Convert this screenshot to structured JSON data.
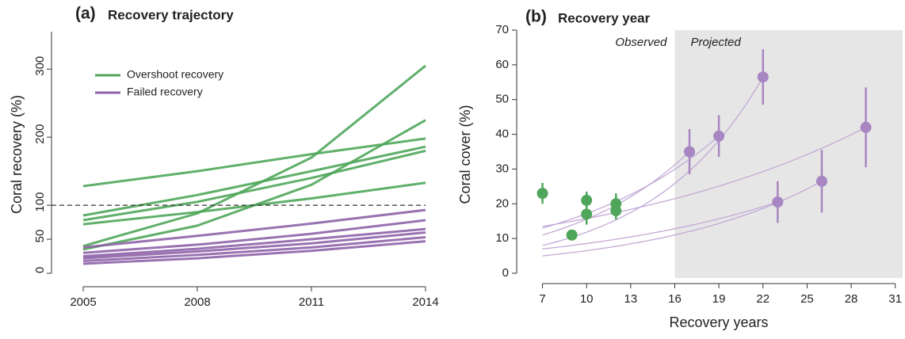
{
  "chart_data": [
    {
      "type": "line",
      "panel_label": "(a)",
      "title": "Recovery trajectory",
      "ylabel": "Coral recovery (%)",
      "x": [
        2005,
        2008,
        2011,
        2014
      ],
      "xlim": [
        2005,
        2014
      ],
      "xticks": [
        2005,
        2008,
        2011,
        2014
      ],
      "ylim": [
        -10,
        355
      ],
      "yticks": [
        0,
        50,
        100,
        200,
        300
      ],
      "reference_line": 100,
      "legend": "upper left",
      "series": [
        {
          "name": "Overshoot recovery",
          "color": "#4fa65a",
          "lines": [
            [
              128,
              150,
              175,
              198
            ],
            [
              40,
              88,
              170,
              305
            ],
            [
              35,
              70,
              130,
              225
            ],
            [
              85,
              115,
              150,
              186
            ],
            [
              72,
              90,
              110,
              133
            ],
            [
              78,
              105,
              140,
              180
            ]
          ]
        },
        {
          "name": "Failed recovery",
          "color": "#8e63a8",
          "lines": [
            [
              38,
              55,
              73,
              93
            ],
            [
              30,
              42,
              58,
              78
            ],
            [
              25,
              36,
              50,
              65
            ],
            [
              22,
              32,
              44,
              60
            ],
            [
              18,
              27,
              38,
              53
            ],
            [
              14,
              22,
              33,
              47
            ]
          ]
        }
      ]
    },
    {
      "type": "scatter",
      "panel_label": "(b)",
      "title": "Recovery year",
      "xlabel": "Recovery years",
      "ylabel": "Coral cover (%)",
      "xlim": [
        5.3,
        31.5
      ],
      "xticks": [
        7,
        10,
        13,
        16,
        19,
        22,
        25,
        28,
        31
      ],
      "ylim": [
        0,
        70
      ],
      "yticks": [
        0,
        10,
        20,
        30,
        40,
        50,
        60,
        70
      ],
      "shaded_from": 16,
      "annotations": [
        "Observed",
        "Projected"
      ],
      "series": [
        {
          "color": "#4fa65a",
          "x": [
            7,
            9,
            10,
            10,
            12,
            12
          ],
          "values": [
            23,
            11,
            21,
            17,
            20,
            18
          ],
          "errors": [
            3,
            1,
            2.5,
            3,
            3,
            2.5
          ]
        },
        {
          "color": "#a786c2",
          "x": [
            17,
            19,
            22,
            23,
            26,
            29
          ],
          "values": [
            35,
            39.5,
            56.5,
            20.5,
            26.5,
            42
          ],
          "errors": [
            6.5,
            6,
            8,
            6,
            9,
            11.5
          ]
        }
      ],
      "trajectories": {
        "color": "#c3a9d6",
        "x": [
          [
            7,
            17
          ],
          [
            7,
            19
          ],
          [
            7,
            22
          ],
          [
            7,
            23
          ],
          [
            7,
            26
          ],
          [
            7,
            29
          ]
        ],
        "values": [
          [
            11,
            35
          ],
          [
            13,
            39.5
          ],
          [
            8,
            56.5
          ],
          [
            7,
            20.5
          ],
          [
            5,
            26.5
          ],
          [
            13.5,
            42
          ]
        ]
      }
    }
  ]
}
